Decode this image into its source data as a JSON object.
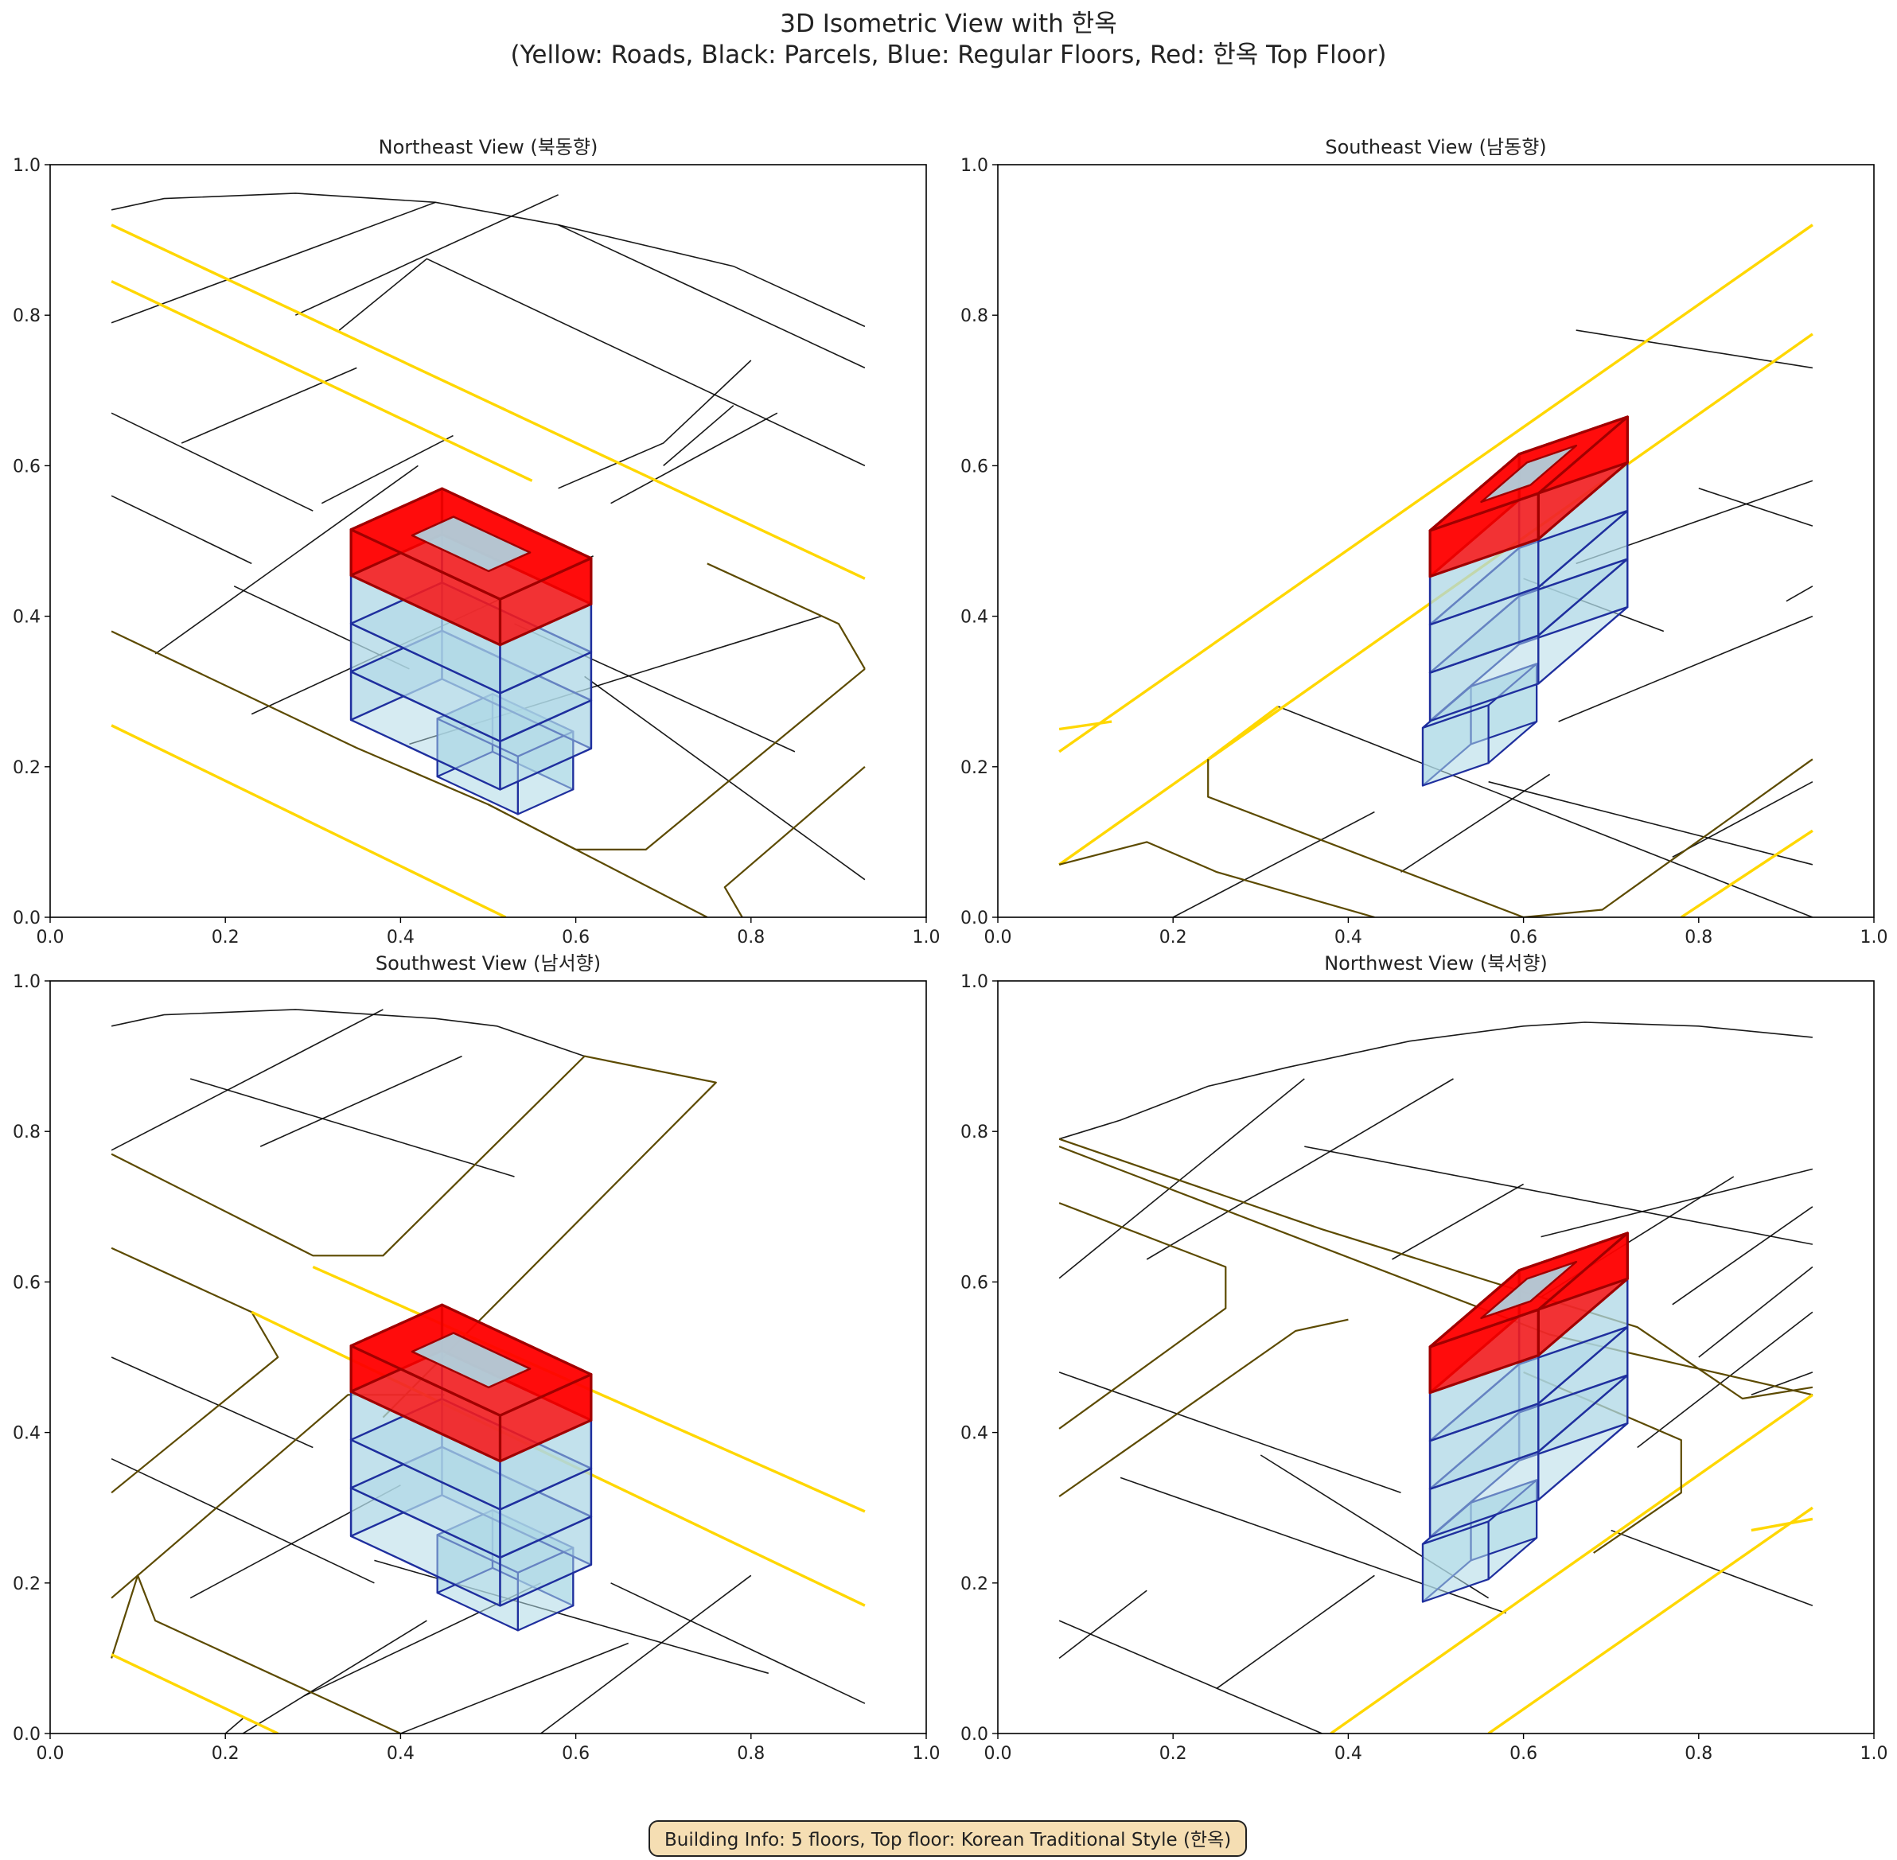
{
  "figure": {
    "title_line1": "3D Isometric View with 한옥",
    "title_line2": "(Yellow: Roads, Black: Parcels, Blue: Regular Floors, Red: 한옥 Top Floor)",
    "info": "Building Info: 5 floors, Top floor: Korean Traditional Style (한옥)"
  },
  "colors": {
    "road": "#ffd700",
    "road_edge": "#5c4a00",
    "parcel": "#000000",
    "floor_fill": "#add8e6",
    "floor_edge": "#1f2f9e",
    "hanok_fill": "#ff0000",
    "hanok_edge": "#a00000"
  },
  "chart_data": [
    {
      "type": "3d-isometric",
      "title": "Northeast View (북동향)",
      "xlim": [
        0,
        1
      ],
      "ylim": [
        0,
        1
      ],
      "xticks": [
        "0.0",
        "0.2",
        "0.4",
        "0.6",
        "0.8",
        "1.0"
      ],
      "yticks": [
        "0.0",
        "0.2",
        "0.4",
        "0.6",
        "0.8",
        "1.0"
      ],
      "roads": [
        [
          [
            0.07,
            0.92
          ],
          [
            0.93,
            0.45
          ]
        ],
        [
          [
            0.07,
            0.845
          ],
          [
            0.55,
            0.58
          ]
        ],
        [
          [
            0.07,
            0.38
          ],
          [
            0.35,
            0.225
          ],
          [
            0.5,
            0.15
          ],
          [
            0.75,
            0.0
          ]
        ],
        [
          [
            0.07,
            0.255
          ],
          [
            0.52,
            0.0
          ]
        ],
        [
          [
            0.93,
            0.33
          ],
          [
            0.9,
            0.39
          ],
          [
            0.75,
            0.47
          ]
        ],
        [
          [
            0.93,
            0.33
          ],
          [
            0.68,
            0.09
          ],
          [
            0.6,
            0.09
          ],
          [
            0.5,
            0.15
          ]
        ],
        [
          [
            0.93,
            0.2
          ],
          [
            0.77,
            0.04
          ],
          [
            0.79,
            0.0
          ]
        ]
      ],
      "parcels": [
        [
          [
            0.07,
            0.94
          ],
          [
            0.13,
            0.955
          ],
          [
            0.28,
            0.962
          ],
          [
            0.44,
            0.95
          ],
          [
            0.58,
            0.92
          ],
          [
            0.78,
            0.865
          ],
          [
            0.93,
            0.785
          ]
        ],
        [
          [
            0.58,
            0.92
          ],
          [
            0.93,
            0.73
          ]
        ],
        [
          [
            0.07,
            0.79
          ],
          [
            0.44,
            0.95
          ]
        ],
        [
          [
            0.28,
            0.8
          ],
          [
            0.58,
            0.96
          ]
        ],
        [
          [
            0.33,
            0.78
          ],
          [
            0.43,
            0.875
          ],
          [
            0.93,
            0.6
          ]
        ],
        [
          [
            0.07,
            0.67
          ],
          [
            0.3,
            0.54
          ]
        ],
        [
          [
            0.15,
            0.63
          ],
          [
            0.35,
            0.73
          ]
        ],
        [
          [
            0.31,
            0.55
          ],
          [
            0.46,
            0.64
          ]
        ],
        [
          [
            0.07,
            0.56
          ],
          [
            0.23,
            0.47
          ]
        ],
        [
          [
            0.12,
            0.35
          ],
          [
            0.42,
            0.6
          ]
        ],
        [
          [
            0.21,
            0.44
          ],
          [
            0.41,
            0.33
          ]
        ],
        [
          [
            0.23,
            0.27
          ],
          [
            0.62,
            0.48
          ]
        ],
        [
          [
            0.58,
            0.57
          ],
          [
            0.7,
            0.63
          ],
          [
            0.8,
            0.74
          ]
        ],
        [
          [
            0.64,
            0.55
          ],
          [
            0.83,
            0.67
          ]
        ],
        [
          [
            0.7,
            0.6
          ],
          [
            0.78,
            0.68
          ]
        ],
        [
          [
            0.41,
            0.23
          ],
          [
            0.88,
            0.4
          ]
        ],
        [
          [
            0.61,
            0.32
          ],
          [
            0.93,
            0.05
          ]
        ],
        [
          [
            0.53,
            0.39
          ],
          [
            0.85,
            0.22
          ]
        ]
      ],
      "building": {
        "cx": 0.505,
        "cy": 0.22,
        "ex": [
          0.092,
          -0.05
        ],
        "ey": [
          -0.063,
          -0.033
        ],
        "ez": 0.064,
        "base": [
          0.8,
          1.2
        ],
        "floors": 4
      }
    },
    {
      "type": "3d-isometric",
      "title": "Southeast View (남동향)",
      "xlim": [
        0,
        1
      ],
      "ylim": [
        0,
        1
      ],
      "xticks": [
        "0.0",
        "0.2",
        "0.4",
        "0.6",
        "0.8",
        "1.0"
      ],
      "yticks": [
        "0.0",
        "0.2",
        "0.4",
        "0.6",
        "0.8",
        "1.0"
      ],
      "roads": [
        [
          [
            0.07,
            0.22
          ],
          [
            0.93,
            0.92
          ]
        ],
        [
          [
            0.07,
            0.07
          ],
          [
            0.93,
            0.775
          ]
        ],
        [
          [
            0.07,
            0.25
          ],
          [
            0.13,
            0.26
          ]
        ],
        [
          [
            0.07,
            0.07
          ],
          [
            0.17,
            0.1
          ],
          [
            0.25,
            0.06
          ],
          [
            0.43,
            0.0
          ]
        ],
        [
          [
            0.24,
            0.21
          ],
          [
            0.32,
            0.28
          ]
        ],
        [
          [
            0.24,
            0.21
          ],
          [
            0.24,
            0.16
          ],
          [
            0.6,
            0.0
          ],
          [
            0.69,
            0.01
          ],
          [
            0.93,
            0.21
          ]
        ],
        [
          [
            0.78,
            0.0
          ],
          [
            0.93,
            0.115
          ]
        ]
      ],
      "parcels": [
        [
          [
            0.2,
            0.0
          ],
          [
            0.43,
            0.14
          ]
        ],
        [
          [
            0.32,
            0.28
          ],
          [
            0.93,
            0.0
          ]
        ],
        [
          [
            0.46,
            0.06
          ],
          [
            0.63,
            0.19
          ]
        ],
        [
          [
            0.56,
            0.18
          ],
          [
            0.93,
            0.07
          ]
        ],
        [
          [
            0.77,
            0.08
          ],
          [
            0.93,
            0.18
          ]
        ],
        [
          [
            0.64,
            0.26
          ],
          [
            0.93,
            0.4
          ]
        ],
        [
          [
            0.6,
            0.45
          ],
          [
            0.76,
            0.38
          ]
        ],
        [
          [
            0.66,
            0.47
          ],
          [
            0.93,
            0.58
          ]
        ],
        [
          [
            0.8,
            0.57
          ],
          [
            0.93,
            0.52
          ]
        ],
        [
          [
            0.66,
            0.78
          ],
          [
            0.93,
            0.73
          ]
        ],
        [
          [
            0.9,
            0.42
          ],
          [
            0.93,
            0.44
          ]
        ]
      ],
      "building": {
        "cx": 0.54,
        "cy": 0.23,
        "ex": [
          -0.055,
          -0.055
        ],
        "ey": [
          0.075,
          0.03
        ],
        "ez": 0.064,
        "base": [
          0.8,
          1.2
        ],
        "floors": 4
      }
    },
    {
      "type": "3d-isometric",
      "title": "Southwest View (남서향)",
      "xlim": [
        0,
        1
      ],
      "ylim": [
        0,
        1
      ],
      "xticks": [
        "0.0",
        "0.2",
        "0.4",
        "0.6",
        "0.8",
        "1.0"
      ],
      "yticks": [
        "0.0",
        "0.2",
        "0.4",
        "0.6",
        "0.8",
        "1.0"
      ],
      "roads": [
        [
          [
            0.07,
            0.77
          ],
          [
            0.3,
            0.635
          ],
          [
            0.38,
            0.635
          ],
          [
            0.61,
            0.9
          ],
          [
            0.76,
            0.865
          ],
          [
            0.38,
            0.42
          ]
        ],
        [
          [
            0.07,
            0.645
          ],
          [
            0.23,
            0.56
          ],
          [
            0.26,
            0.5
          ],
          [
            0.07,
            0.32
          ]
        ],
        [
          [
            0.07,
            0.18
          ],
          [
            0.34,
            0.45
          ],
          [
            0.45,
            0.45
          ]
        ],
        [
          [
            0.3,
            0.62
          ],
          [
            0.93,
            0.295
          ]
        ],
        [
          [
            0.23,
            0.56
          ],
          [
            0.93,
            0.17
          ]
        ],
        [
          [
            0.07,
            0.1
          ],
          [
            0.1,
            0.21
          ],
          [
            0.12,
            0.15
          ],
          [
            0.4,
            0.0
          ]
        ],
        [
          [
            0.07,
            0.105
          ],
          [
            0.26,
            0.0
          ]
        ]
      ],
      "parcels": [
        [
          [
            0.07,
            0.94
          ],
          [
            0.13,
            0.955
          ],
          [
            0.28,
            0.962
          ],
          [
            0.44,
            0.95
          ],
          [
            0.51,
            0.94
          ],
          [
            0.61,
            0.9
          ]
        ],
        [
          [
            0.07,
            0.775
          ],
          [
            0.38,
            0.962
          ]
        ],
        [
          [
            0.16,
            0.87
          ],
          [
            0.53,
            0.74
          ]
        ],
        [
          [
            0.24,
            0.78
          ],
          [
            0.47,
            0.9
          ]
        ],
        [
          [
            0.07,
            0.5
          ],
          [
            0.3,
            0.38
          ]
        ],
        [
          [
            0.07,
            0.365
          ],
          [
            0.37,
            0.2
          ]
        ],
        [
          [
            0.16,
            0.18
          ],
          [
            0.4,
            0.33
          ]
        ],
        [
          [
            0.29,
            0.05
          ],
          [
            0.56,
            0.2
          ]
        ],
        [
          [
            0.22,
            0.0
          ],
          [
            0.43,
            0.15
          ]
        ],
        [
          [
            0.4,
            0.0
          ],
          [
            0.66,
            0.12
          ]
        ],
        [
          [
            0.37,
            0.23
          ],
          [
            0.82,
            0.08
          ]
        ],
        [
          [
            0.64,
            0.2
          ],
          [
            0.93,
            0.04
          ]
        ],
        [
          [
            0.56,
            0.0
          ],
          [
            0.8,
            0.21
          ]
        ],
        [
          [
            0.2,
            0.0
          ],
          [
            0.22,
            0.02
          ]
        ]
      ],
      "building": {
        "cx": 0.505,
        "cy": 0.22,
        "ex": [
          0.092,
          -0.05
        ],
        "ey": [
          -0.063,
          -0.033
        ],
        "ez": 0.064,
        "base": [
          0.8,
          1.2
        ],
        "floors": 4
      }
    },
    {
      "type": "3d-isometric",
      "title": "Northwest View (북서향)",
      "xlim": [
        0,
        1
      ],
      "ylim": [
        0,
        1
      ],
      "xticks": [
        "0.0",
        "0.2",
        "0.4",
        "0.6",
        "0.8",
        "1.0"
      ],
      "yticks": [
        "0.0",
        "0.2",
        "0.4",
        "0.6",
        "0.8",
        "1.0"
      ],
      "roads": [
        [
          [
            0.07,
            0.78
          ],
          [
            0.63,
            0.53
          ],
          [
            0.93,
            0.45
          ]
        ],
        [
          [
            0.07,
            0.79
          ],
          [
            0.37,
            0.67
          ],
          [
            0.73,
            0.54
          ],
          [
            0.85,
            0.445
          ],
          [
            0.93,
            0.46
          ]
        ],
        [
          [
            0.07,
            0.705
          ],
          [
            0.26,
            0.62
          ],
          [
            0.26,
            0.565
          ],
          [
            0.07,
            0.405
          ]
        ],
        [
          [
            0.07,
            0.315
          ],
          [
            0.34,
            0.535
          ],
          [
            0.4,
            0.55
          ]
        ],
        [
          [
            0.38,
            0.0
          ],
          [
            0.93,
            0.45
          ]
        ],
        [
          [
            0.56,
            0.0
          ],
          [
            0.93,
            0.3
          ]
        ],
        [
          [
            0.68,
            0.24
          ],
          [
            0.78,
            0.32
          ],
          [
            0.78,
            0.39
          ],
          [
            0.6,
            0.48
          ]
        ],
        [
          [
            0.86,
            0.27
          ],
          [
            0.93,
            0.285
          ]
        ]
      ],
      "parcels": [
        [
          [
            0.07,
            0.79
          ],
          [
            0.14,
            0.815
          ],
          [
            0.24,
            0.86
          ],
          [
            0.33,
            0.885
          ],
          [
            0.47,
            0.92
          ],
          [
            0.6,
            0.94
          ],
          [
            0.67,
            0.945
          ],
          [
            0.8,
            0.94
          ],
          [
            0.93,
            0.925
          ]
        ],
        [
          [
            0.07,
            0.605
          ],
          [
            0.35,
            0.87
          ]
        ],
        [
          [
            0.17,
            0.63
          ],
          [
            0.52,
            0.87
          ]
        ],
        [
          [
            0.35,
            0.78
          ],
          [
            0.93,
            0.65
          ]
        ],
        [
          [
            0.45,
            0.63
          ],
          [
            0.6,
            0.73
          ]
        ],
        [
          [
            0.62,
            0.58
          ],
          [
            0.84,
            0.74
          ]
        ],
        [
          [
            0.62,
            0.66
          ],
          [
            0.93,
            0.75
          ]
        ],
        [
          [
            0.77,
            0.57
          ],
          [
            0.93,
            0.7
          ]
        ],
        [
          [
            0.86,
            0.45
          ],
          [
            0.93,
            0.48
          ]
        ],
        [
          [
            0.07,
            0.48
          ],
          [
            0.46,
            0.32
          ]
        ],
        [
          [
            0.07,
            0.15
          ],
          [
            0.37,
            0.0
          ]
        ],
        [
          [
            0.07,
            0.1
          ],
          [
            0.17,
            0.19
          ]
        ],
        [
          [
            0.25,
            0.06
          ],
          [
            0.43,
            0.21
          ]
        ],
        [
          [
            0.14,
            0.34
          ],
          [
            0.58,
            0.16
          ]
        ],
        [
          [
            0.3,
            0.37
          ],
          [
            0.56,
            0.18
          ]
        ],
        [
          [
            0.7,
            0.27
          ],
          [
            0.93,
            0.17
          ]
        ],
        [
          [
            0.73,
            0.38
          ],
          [
            0.93,
            0.56
          ]
        ],
        [
          [
            0.8,
            0.5
          ],
          [
            0.93,
            0.62
          ]
        ]
      ],
      "building": {
        "cx": 0.54,
        "cy": 0.23,
        "ex": [
          -0.055,
          -0.055
        ],
        "ey": [
          0.075,
          0.03
        ],
        "ez": 0.064,
        "base": [
          0.8,
          1.2
        ],
        "floors": 4
      }
    }
  ]
}
